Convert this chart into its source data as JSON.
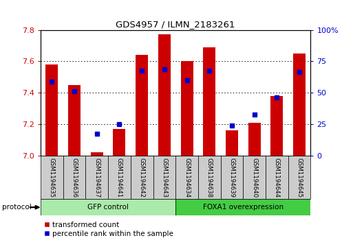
{
  "title": "GDS4957 / ILMN_2183261",
  "samples": [
    "GSM1194635",
    "GSM1194636",
    "GSM1194637",
    "GSM1194641",
    "GSM1194642",
    "GSM1194643",
    "GSM1194634",
    "GSM1194638",
    "GSM1194639",
    "GSM1194640",
    "GSM1194644",
    "GSM1194645"
  ],
  "red_values": [
    7.58,
    7.45,
    7.02,
    7.17,
    7.64,
    7.77,
    7.6,
    7.69,
    7.16,
    7.21,
    7.38,
    7.65
  ],
  "blue_values": [
    7.47,
    7.41,
    7.14,
    7.2,
    7.54,
    7.55,
    7.48,
    7.54,
    7.19,
    7.26,
    7.37,
    7.53
  ],
  "ylim_left": [
    7.0,
    7.8
  ],
  "ylim_right": [
    0,
    100
  ],
  "yticks_left": [
    7.0,
    7.2,
    7.4,
    7.6,
    7.8
  ],
  "yticks_right": [
    0,
    25,
    50,
    75,
    100
  ],
  "group1_label": "GFP control",
  "group1_count": 6,
  "group2_label": "FOXA1 overexpression",
  "group2_count": 6,
  "protocol_label": "protocol",
  "legend_red": "transformed count",
  "legend_blue": "percentile rank within the sample",
  "red_color": "#CC0000",
  "blue_color": "#0000CC",
  "bar_width": 0.55,
  "base_value": 7.0,
  "group1_color": "#AAEAAA",
  "group2_color": "#44CC44",
  "tick_color_left": "#CC0000",
  "tick_color_right": "#0000CC",
  "bg_color": "#FFFFFF",
  "grid_color": "#000000",
  "grid_levels": [
    7.2,
    7.4,
    7.6
  ]
}
